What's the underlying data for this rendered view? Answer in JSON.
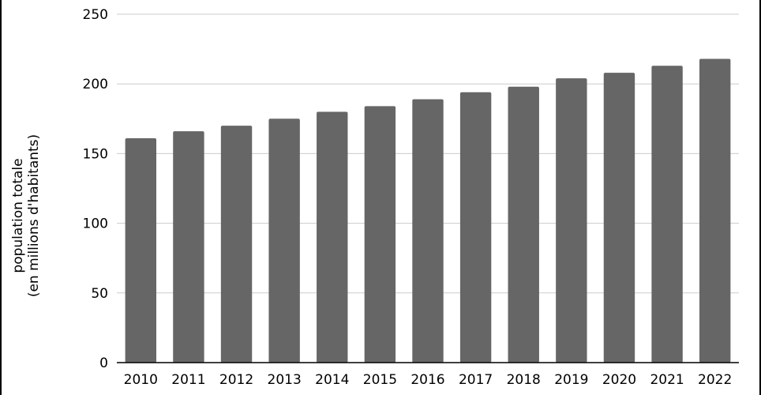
{
  "chart_data": {
    "type": "bar",
    "title": "",
    "xlabel": "",
    "ylabel_lines": [
      "population totale",
      "(en millions d'habitants)"
    ],
    "categories": [
      "2010",
      "2011",
      "2012",
      "2013",
      "2014",
      "2015",
      "2016",
      "2017",
      "2018",
      "2019",
      "2020",
      "2021",
      "2022"
    ],
    "values": [
      161,
      166,
      170,
      175,
      180,
      184,
      189,
      194,
      198,
      204,
      208,
      213,
      218
    ],
    "ylim": [
      0,
      250
    ],
    "yticks": [
      0,
      50,
      100,
      150,
      200,
      250
    ],
    "ytick_labels": [
      "0",
      "50",
      "100",
      "150",
      "200",
      "250"
    ],
    "grid": true,
    "legend": "none",
    "colors": {
      "bar": "#666666",
      "grid": "#cccccc",
      "axis": "#000000"
    }
  }
}
